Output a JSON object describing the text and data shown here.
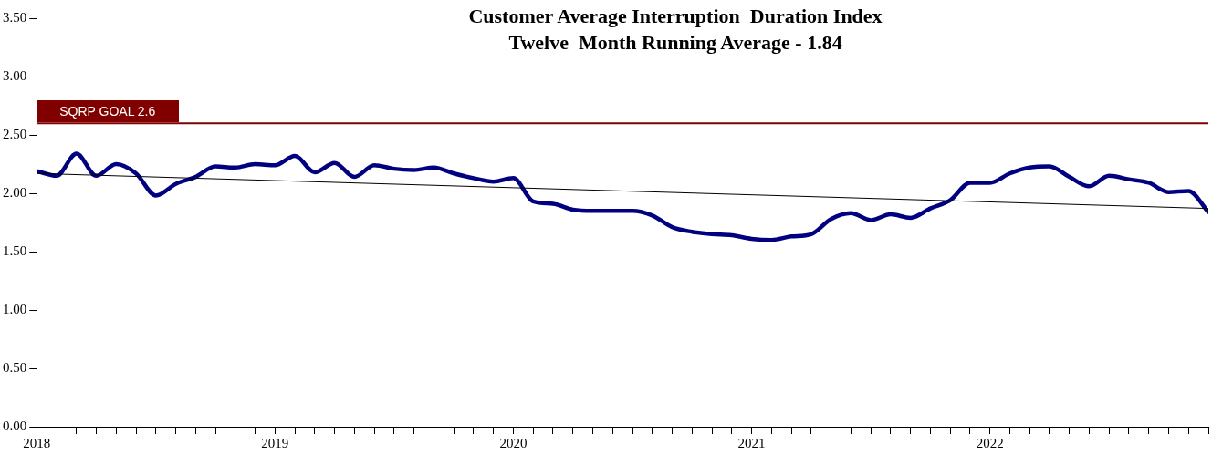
{
  "chart_data": {
    "type": "line",
    "title": "Customer Average Interruption  Duration Index",
    "subtitle": "Twelve  Month Running Average - 1.84",
    "x": [
      "2018-01",
      "2018-02",
      "2018-03",
      "2018-04",
      "2018-05",
      "2018-06",
      "2018-07",
      "2018-08",
      "2018-09",
      "2018-10",
      "2018-11",
      "2018-12",
      "2019-01",
      "2019-02",
      "2019-03",
      "2019-04",
      "2019-05",
      "2019-06",
      "2019-07",
      "2019-08",
      "2019-09",
      "2019-10",
      "2019-11",
      "2019-12",
      "2020-01",
      "2020-02",
      "2020-03",
      "2020-04",
      "2020-05",
      "2020-06",
      "2020-07",
      "2020-08",
      "2020-09",
      "2020-10",
      "2020-11",
      "2020-12",
      "2021-01",
      "2021-02",
      "2021-03",
      "2021-04",
      "2021-05",
      "2021-06",
      "2021-07",
      "2021-08",
      "2021-09",
      "2021-10",
      "2021-11",
      "2021-12",
      "2022-01",
      "2022-02",
      "2022-03",
      "2022-04",
      "2022-05",
      "2022-06",
      "2022-07",
      "2022-08",
      "2022-09",
      "2022-10",
      "2022-11",
      "2022-12"
    ],
    "series": [
      {
        "color": "#000080",
        "values": [
          2.19,
          2.15,
          2.34,
          2.15,
          2.25,
          2.17,
          1.98,
          2.08,
          2.14,
          2.23,
          2.22,
          2.25,
          2.24,
          2.32,
          2.18,
          2.26,
          2.14,
          2.24,
          2.21,
          2.2,
          2.22,
          2.17,
          2.13,
          2.1,
          2.13,
          1.93,
          1.91,
          1.86,
          1.85,
          1.85,
          1.85,
          1.81,
          1.71,
          1.67,
          1.65,
          1.64,
          1.61,
          1.6,
          1.63,
          1.65,
          1.78,
          1.83,
          1.77,
          1.82,
          1.79,
          1.87,
          1.94,
          2.09,
          2.09,
          2.17,
          2.22,
          2.23,
          2.14,
          2.06,
          2.15,
          2.12,
          2.09,
          2.01,
          2.02,
          1.84
        ]
      },
      {
        "type": "line",
        "color": "#000000",
        "x": [
          "2018-01",
          "2022-12"
        ],
        "values": [
          2.17,
          1.87
        ]
      }
    ],
    "xlim": [
      "2018-01",
      "2022-12"
    ],
    "xticks": [
      {
        "value": "2018-01",
        "label": "2018"
      },
      {
        "value": "2018-02",
        "label": null
      },
      {
        "value": "2018-03",
        "label": null
      },
      {
        "value": "2018-04",
        "label": null
      },
      {
        "value": "2018-05",
        "label": null
      },
      {
        "value": "2018-06",
        "label": null
      },
      {
        "value": "2018-07",
        "label": null
      },
      {
        "value": "2018-08",
        "label": null
      },
      {
        "value": "2018-09",
        "label": null
      },
      {
        "value": "2018-10",
        "label": null
      },
      {
        "value": "2018-11",
        "label": null
      },
      {
        "value": "2018-12",
        "label": null
      },
      {
        "value": "2019-01",
        "label": "2019"
      },
      {
        "value": "2019-02",
        "label": null
      },
      {
        "value": "2019-03",
        "label": null
      },
      {
        "value": "2019-04",
        "label": null
      },
      {
        "value": "2019-05",
        "label": null
      },
      {
        "value": "2019-06",
        "label": null
      },
      {
        "value": "2019-07",
        "label": null
      },
      {
        "value": "2019-08",
        "label": null
      },
      {
        "value": "2019-09",
        "label": null
      },
      {
        "value": "2019-10",
        "label": null
      },
      {
        "value": "2019-11",
        "label": null
      },
      {
        "value": "2019-12",
        "label": null
      },
      {
        "value": "2020-01",
        "label": "2020"
      },
      {
        "value": "2020-02",
        "label": null
      },
      {
        "value": "2020-03",
        "label": null
      },
      {
        "value": "2020-04",
        "label": null
      },
      {
        "value": "2020-05",
        "label": null
      },
      {
        "value": "2020-06",
        "label": null
      },
      {
        "value": "2020-07",
        "label": null
      },
      {
        "value": "2020-08",
        "label": null
      },
      {
        "value": "2020-09",
        "label": null
      },
      {
        "value": "2020-10",
        "label": null
      },
      {
        "value": "2020-11",
        "label": null
      },
      {
        "value": "2020-12",
        "label": null
      },
      {
        "value": "2021-01",
        "label": "2021"
      },
      {
        "value": "2021-02",
        "label": null
      },
      {
        "value": "2021-03",
        "label": null
      },
      {
        "value": "2021-04",
        "label": null
      },
      {
        "value": "2021-05",
        "label": null
      },
      {
        "value": "2021-06",
        "label": null
      },
      {
        "value": "2021-07",
        "label": null
      },
      {
        "value": "2021-08",
        "label": null
      },
      {
        "value": "2021-09",
        "label": null
      },
      {
        "value": "2021-10",
        "label": null
      },
      {
        "value": "2021-11",
        "label": null
      },
      {
        "value": "2021-12",
        "label": null
      },
      {
        "value": "2022-01",
        "label": "2022"
      },
      {
        "value": "2022-02",
        "label": null
      },
      {
        "value": "2022-03",
        "label": null
      },
      {
        "value": "2022-04",
        "label": null
      },
      {
        "value": "2022-05",
        "label": null
      },
      {
        "value": "2022-06",
        "label": null
      },
      {
        "value": "2022-07",
        "label": null
      },
      {
        "value": "2022-08",
        "label": null
      },
      {
        "value": "2022-09",
        "label": null
      },
      {
        "value": "2022-10",
        "label": null
      },
      {
        "value": "2022-11",
        "label": null
      },
      {
        "value": "2022-12",
        "label": null
      }
    ],
    "ylim": [
      0,
      3.5
    ],
    "yticks": [
      {
        "value": 0,
        "label": "0.00"
      },
      {
        "value": 0.5,
        "label": "0.50"
      },
      {
        "value": 1,
        "label": "1.00"
      },
      {
        "value": 1.5,
        "label": "1.50"
      },
      {
        "value": 2,
        "label": "2.00"
      },
      {
        "value": 2.5,
        "label": "2.50"
      },
      {
        "value": 3,
        "label": "3.00"
      },
      {
        "value": 3.5,
        "label": "3.50"
      }
    ],
    "ref_lines": [
      {
        "axis": "y",
        "value": 2.6,
        "label": "SQRP GOAL 2.6",
        "color": "#800000"
      }
    ],
    "grid": false,
    "legend": false,
    "marker": "none",
    "line_style": "solid"
  }
}
